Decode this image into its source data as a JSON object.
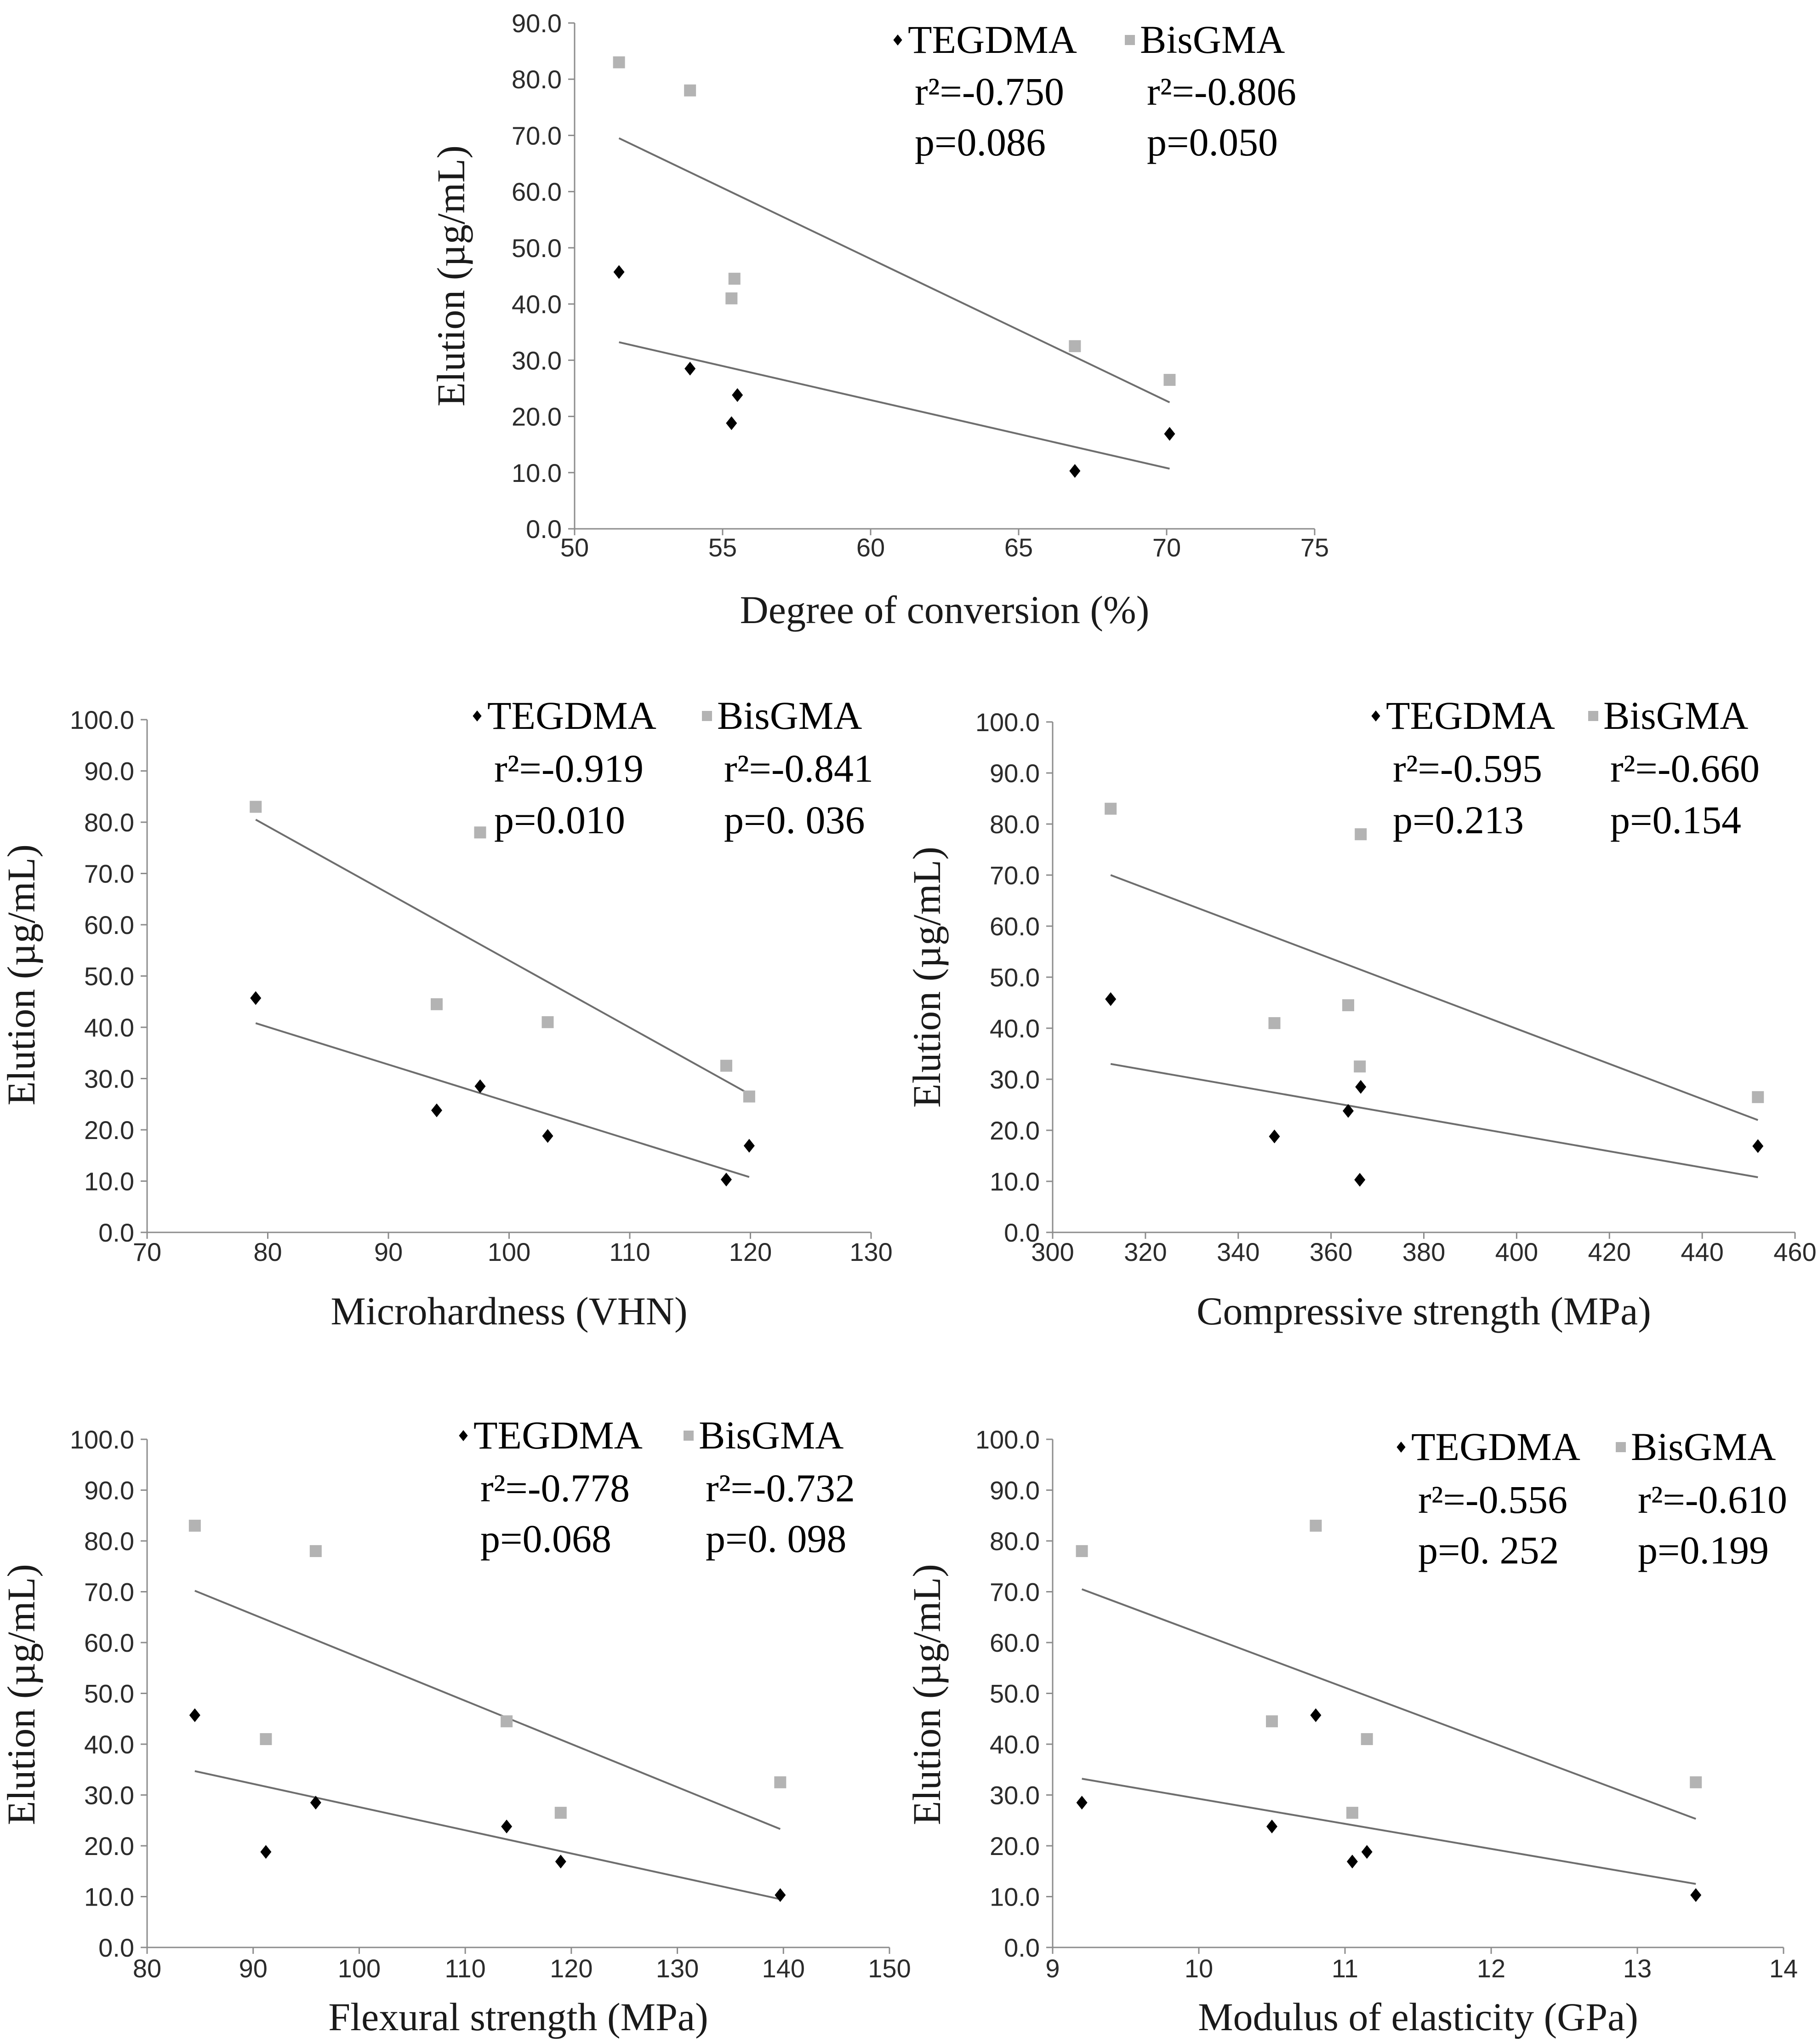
{
  "chart_data": [
    {
      "type": "scatter",
      "xlabel": "Degree of conversion (%)",
      "ylabel": "Elution (µg/mL)",
      "xlim": [
        50,
        75
      ],
      "xticks": [
        50,
        55,
        60,
        65,
        70,
        75
      ],
      "ylim": [
        0,
        90
      ],
      "yticks": [
        "0.0",
        "10.0",
        "20.0",
        "30.0",
        "40.0",
        "50.0",
        "60.0",
        "70.0",
        "80.0",
        "90.0"
      ],
      "series": [
        {
          "name": "TEGDMA",
          "marker": "diamond",
          "color": "#000000",
          "r2": "r²=-0.750",
          "p": "p=0.086",
          "x": [
            51.5,
            53.9,
            55.5,
            55.3,
            66.9,
            70.1
          ],
          "y": [
            45.7,
            28.5,
            23.8,
            18.8,
            10.3,
            16.9
          ],
          "fit": [
            [
              51.5,
              33.2
            ],
            [
              70.1,
              10.7
            ]
          ]
        },
        {
          "name": "BisGMA",
          "marker": "square",
          "color": "#b3b3b3",
          "r2": "r²=-0.806",
          "p": "p=0.050",
          "x": [
            51.5,
            53.9,
            55.4,
            55.3,
            66.9,
            70.1
          ],
          "y": [
            83.0,
            78.0,
            44.5,
            41.0,
            32.5,
            26.5
          ],
          "fit": [
            [
              51.5,
              69.5
            ],
            [
              70.1,
              22.5
            ]
          ]
        }
      ]
    },
    {
      "type": "scatter",
      "xlabel": "Microhardness (VHN)",
      "ylabel": "Elution (µg/mL)",
      "xlim": [
        70,
        130
      ],
      "xticks": [
        70,
        80,
        90,
        100,
        110,
        120,
        130
      ],
      "ylim": [
        0,
        100
      ],
      "yticks": [
        "0.0",
        "10.0",
        "20.0",
        "30.0",
        "40.0",
        "50.0",
        "60.0",
        "70.0",
        "80.0",
        "90.0",
        "100.0"
      ],
      "series": [
        {
          "name": "TEGDMA",
          "marker": "diamond",
          "color": "#000000",
          "r2": "r²=-0.919",
          "p": "p=0.010",
          "x": [
            79,
            94,
            97.6,
            103.2,
            118,
            119.9
          ],
          "y": [
            45.7,
            23.8,
            28.5,
            18.8,
            10.3,
            16.9
          ],
          "fit": [
            [
              79,
              40.8
            ],
            [
              119.9,
              10.8
            ]
          ]
        },
        {
          "name": "BisGMA",
          "marker": "square",
          "color": "#b3b3b3",
          "r2": "r²=-0.841",
          "p": "p=0. 036",
          "x": [
            79,
            94,
            97.6,
            103.2,
            118,
            119.9
          ],
          "y": [
            83.0,
            44.5,
            78.0,
            41.0,
            32.5,
            26.5
          ],
          "fit": [
            [
              79,
              80.5
            ],
            [
              119.9,
              27.0
            ]
          ]
        }
      ]
    },
    {
      "type": "scatter",
      "xlabel": "Compressive strength (MPa)",
      "ylabel": "Elution (µg/mL)",
      "xlim": [
        300,
        460
      ],
      "xticks": [
        300,
        320,
        340,
        360,
        380,
        400,
        420,
        440,
        460
      ],
      "ylim": [
        0,
        100
      ],
      "yticks": [
        "0.0",
        "10.0",
        "20.0",
        "30.0",
        "40.0",
        "50.0",
        "60.0",
        "70.0",
        "80.0",
        "90.0",
        "100.0"
      ],
      "series": [
        {
          "name": "TEGDMA",
          "marker": "diamond",
          "color": "#000000",
          "r2": "r²=-0.595",
          "p": "p=0.213",
          "x": [
            312.5,
            347.8,
            363.7,
            366.4,
            366.2,
            452
          ],
          "y": [
            45.7,
            18.8,
            23.8,
            28.5,
            10.3,
            16.9
          ],
          "fit": [
            [
              312.5,
              33.0
            ],
            [
              452,
              10.8
            ]
          ]
        },
        {
          "name": "BisGMA",
          "marker": "square",
          "color": "#b3b3b3",
          "r2": "r²=-0.660",
          "p": "p=0.154",
          "x": [
            312.5,
            347.8,
            363.7,
            366.4,
            366.2,
            452
          ],
          "y": [
            83.0,
            41.0,
            44.5,
            78.0,
            32.5,
            26.5
          ],
          "fit": [
            [
              312.5,
              70.0
            ],
            [
              452,
              22.0
            ]
          ]
        }
      ]
    },
    {
      "type": "scatter",
      "xlabel": "Flexural strength (MPa)",
      "ylabel": "Elution (µg/mL)",
      "xlim": [
        80,
        150
      ],
      "xticks": [
        80,
        90,
        100,
        110,
        120,
        130,
        140,
        150
      ],
      "ylim": [
        0,
        100
      ],
      "yticks": [
        "0.0",
        "10.0",
        "20.0",
        "30.0",
        "40.0",
        "50.0",
        "60.0",
        "70.0",
        "80.0",
        "90.0",
        "100.0"
      ],
      "series": [
        {
          "name": "TEGDMA",
          "marker": "diamond",
          "color": "#000000",
          "r2": "r²=-0.778",
          "p": "p=0.068",
          "x": [
            84.5,
            91.2,
            95.9,
            113.9,
            119,
            139.7
          ],
          "y": [
            45.7,
            18.8,
            28.5,
            23.8,
            16.9,
            10.3
          ],
          "fit": [
            [
              84.5,
              34.7
            ],
            [
              139.7,
              9.5
            ]
          ]
        },
        {
          "name": "BisGMA",
          "marker": "square",
          "color": "#b3b3b3",
          "r2": "r²=-0.732",
          "p": "p=0. 098",
          "x": [
            84.5,
            91.2,
            95.9,
            113.9,
            119,
            139.7
          ],
          "y": [
            83.0,
            41.0,
            78.0,
            44.5,
            26.5,
            32.5
          ],
          "fit": [
            [
              84.5,
              70.2
            ],
            [
              139.7,
              23.3
            ]
          ]
        }
      ]
    },
    {
      "type": "scatter",
      "xlabel": "Modulus of elasticity (GPa)",
      "ylabel": "Elution (µg/mL)",
      "xlim": [
        9,
        14
      ],
      "xticks": [
        9,
        10,
        11,
        12,
        13,
        14
      ],
      "ylim": [
        0,
        100
      ],
      "yticks": [
        "0.0",
        "10.0",
        "20.0",
        "30.0",
        "40.0",
        "50.0",
        "60.0",
        "70.0",
        "80.0",
        "90.0",
        "100.0"
      ],
      "series": [
        {
          "name": "TEGDMA",
          "marker": "diamond",
          "color": "#000000",
          "r2": "r²=-0.556",
          "p": "p=0. 252",
          "x": [
            9.2,
            10.5,
            10.8,
            11.05,
            11.15,
            13.4
          ],
          "y": [
            28.5,
            23.8,
            45.7,
            16.9,
            18.8,
            10.3
          ],
          "fit": [
            [
              9.2,
              33.2
            ],
            [
              13.4,
              12.5
            ]
          ]
        },
        {
          "name": "BisGMA",
          "marker": "square",
          "color": "#b3b3b3",
          "r2": "r²=-0.610",
          "p": "p=0.199",
          "x": [
            9.2,
            10.5,
            10.8,
            11.05,
            11.15,
            13.4
          ],
          "y": [
            78.0,
            44.5,
            83.0,
            26.5,
            41.0,
            32.5
          ],
          "fit": [
            [
              9.2,
              70.5
            ],
            [
              13.4,
              25.3
            ]
          ]
        }
      ]
    }
  ]
}
